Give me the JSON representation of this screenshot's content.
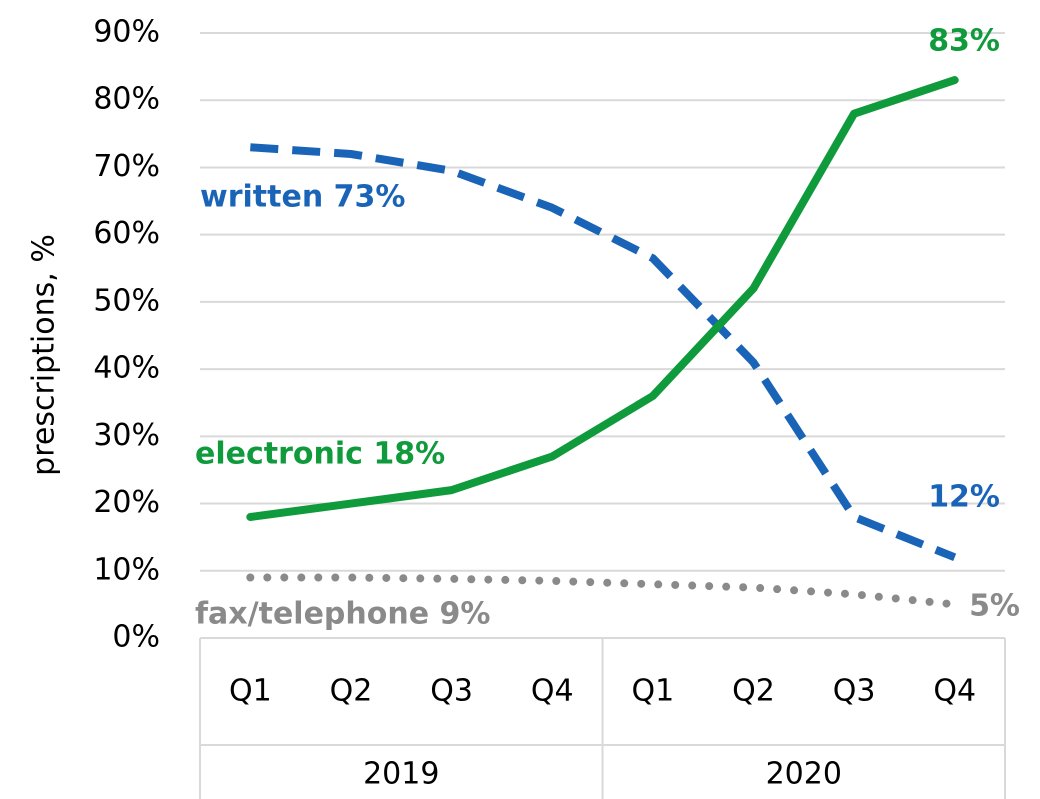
{
  "chart_data": {
    "type": "line",
    "y_label": "prescriptions, %",
    "categories": [
      "Q1",
      "Q2",
      "Q3",
      "Q4",
      "Q1",
      "Q2",
      "Q3",
      "Q4"
    ],
    "groups": [
      "2019",
      "2020"
    ],
    "ylim": [
      0,
      90
    ],
    "yticks": [
      {
        "value": 0,
        "label": "0%"
      },
      {
        "value": 10,
        "label": "10%"
      },
      {
        "value": 20,
        "label": "20%"
      },
      {
        "value": 30,
        "label": "30%"
      },
      {
        "value": 40,
        "label": "40%"
      },
      {
        "value": 50,
        "label": "50%"
      },
      {
        "value": 60,
        "label": "60%"
      },
      {
        "value": 70,
        "label": "70%"
      },
      {
        "value": 80,
        "label": "80%"
      },
      {
        "value": 90,
        "label": "90%"
      }
    ],
    "grid": true,
    "series": [
      {
        "name": "written",
        "color": "#1a64b8",
        "dash": "dashed",
        "values": [
          73,
          72,
          69.5,
          64,
          56.5,
          41,
          18,
          12
        ],
        "value_labels": [
          "written 73%",
          null,
          null,
          null,
          null,
          null,
          null,
          "12%"
        ]
      },
      {
        "name": "electronic",
        "color": "#0f9a3c",
        "dash": "solid",
        "values": [
          18,
          20,
          22,
          27,
          36,
          52,
          78,
          83
        ],
        "value_labels": [
          "electronic 18%",
          null,
          null,
          null,
          null,
          null,
          null,
          "83%"
        ]
      },
      {
        "name": "fax/telephone",
        "color": "#8a8a8a",
        "dash": "dotted",
        "values": [
          9,
          9,
          8.8,
          8.5,
          8,
          7.5,
          6.5,
          5
        ],
        "value_labels": [
          "fax/telephone 9%",
          null,
          null,
          null,
          null,
          null,
          null,
          "5%"
        ]
      }
    ]
  }
}
